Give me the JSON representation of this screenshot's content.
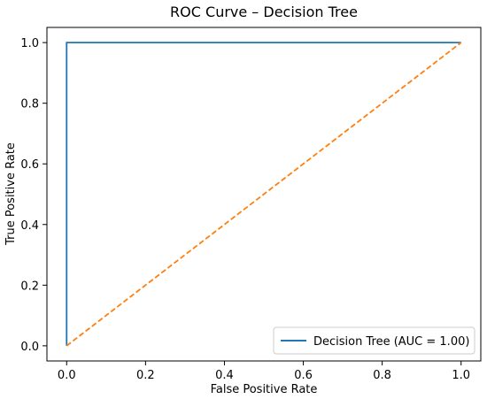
{
  "chart_data": {
    "type": "line",
    "title": "ROC Curve – Decision Tree",
    "xlabel": "False Positive Rate",
    "ylabel": "True Positive Rate",
    "xlim": [
      -0.05,
      1.05
    ],
    "ylim": [
      -0.05,
      1.05
    ],
    "xticks": [
      "0.0",
      "0.2",
      "0.4",
      "0.6",
      "0.8",
      "1.0"
    ],
    "yticks": [
      "0.0",
      "0.2",
      "0.4",
      "0.6",
      "0.8",
      "1.0"
    ],
    "grid": false,
    "legend": {
      "position": "lower-right",
      "entries": [
        "Decision Tree (AUC = 1.00)"
      ]
    },
    "series": [
      {
        "name": "Decision Tree (AUC = 1.00)",
        "color": "#1f77b4",
        "style": "solid",
        "x": [
          0.0,
          0.0,
          1.0
        ],
        "y": [
          0.0,
          1.0,
          1.0
        ]
      },
      {
        "color": "#ff7f0e",
        "style": "dashed",
        "x": [
          0.0,
          1.0
        ],
        "y": [
          0.0,
          1.0
        ]
      }
    ]
  }
}
